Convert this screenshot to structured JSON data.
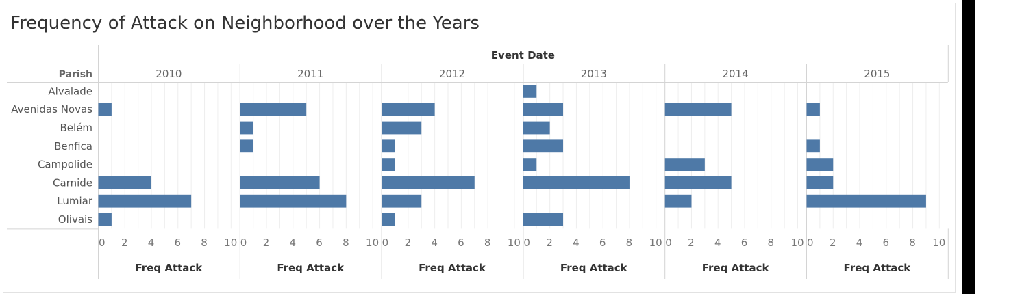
{
  "colors": {
    "bar": "#4e79a7",
    "text": "#555555",
    "header": "#333333",
    "grid": "#eeeeee",
    "divider": "#d4d4d4",
    "right_bar": "#000000"
  },
  "chart_data": {
    "type": "bar",
    "orientation": "horizontal",
    "title": "Frequency of Attack on Neighborhood over the Years",
    "column_header": "Event Date",
    "row_header": "Parish",
    "xlabel": "Freq Attack",
    "xlim": [
      0,
      10
    ],
    "x_ticks": [
      "0",
      "2",
      "4",
      "6",
      "8",
      "10"
    ],
    "grid": true,
    "categories": [
      "Alvalade",
      "Avenidas Novas",
      "Belém",
      "Benfica",
      "Campolide",
      "Carnide",
      "Lumiar",
      "Olivais"
    ],
    "series": [
      {
        "name": "2010",
        "values": [
          0,
          1,
          0,
          0,
          0,
          4,
          7,
          1
        ]
      },
      {
        "name": "2011",
        "values": [
          0,
          5,
          1,
          1,
          0,
          6,
          8,
          0
        ]
      },
      {
        "name": "2012",
        "values": [
          0,
          4,
          3,
          1,
          1,
          7,
          3,
          1
        ]
      },
      {
        "name": "2013",
        "values": [
          1,
          3,
          2,
          3,
          1,
          8,
          0,
          3
        ]
      },
      {
        "name": "2014",
        "values": [
          0,
          5,
          0,
          0,
          3,
          5,
          2,
          0
        ]
      },
      {
        "name": "2015",
        "values": [
          0,
          1,
          0,
          1,
          2,
          2,
          9,
          0
        ]
      }
    ]
  }
}
